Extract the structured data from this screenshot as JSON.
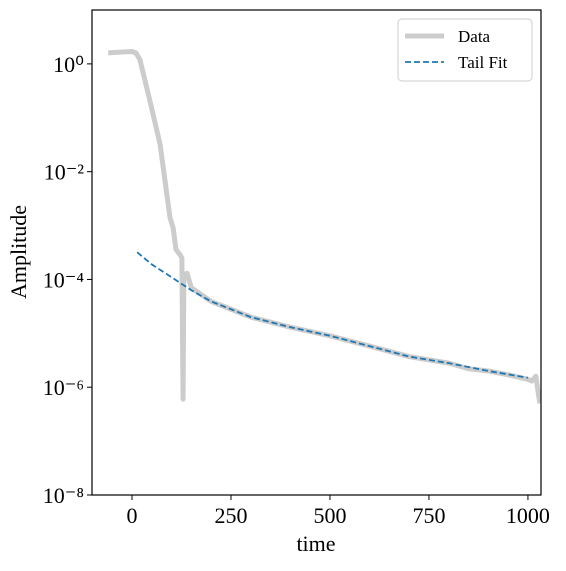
{
  "chart_data": {
    "type": "line",
    "x_label": "time",
    "y_label": "Amplitude",
    "xlim": [
      -101,
      1033
    ],
    "ylim": [
      1e-08,
      10
    ],
    "log_y": true,
    "xticks": [
      0,
      250,
      500,
      750,
      1000
    ],
    "yticks": [
      {
        "value": 1,
        "label": "10⁰"
      },
      {
        "value": 0.01,
        "label": "10⁻²"
      },
      {
        "value": 0.0001,
        "label": "10⁻⁴"
      },
      {
        "value": 1e-06,
        "label": "10⁻⁶"
      },
      {
        "value": 1e-08,
        "label": "10⁻⁸"
      }
    ],
    "legend_position": "upper right",
    "series": [
      {
        "name": "Data",
        "color": "#cccccc",
        "style": "solid",
        "x": [
          -60,
          -30,
          0,
          10,
          20,
          45,
          71,
          96,
          104,
          111,
          121,
          126,
          129,
          131,
          139,
          150,
          200,
          250,
          300,
          400,
          500,
          600,
          700,
          800,
          850,
          900,
          950,
          1000,
          1010,
          1020,
          1030
        ],
        "values": [
          1.6,
          1.65,
          1.7,
          1.6,
          1.2,
          0.21,
          0.032,
          0.0014,
          0.0009,
          0.00036,
          0.00029,
          0.00025,
          6e-07,
          0.00012,
          0.00013,
          7e-05,
          3.9e-05,
          2.8e-05,
          2e-05,
          1.3e-05,
          9e-06,
          5.8e-06,
          3.7e-06,
          2.8e-06,
          2.2e-06,
          2e-06,
          1.7e-06,
          1.4e-06,
          1.3e-06,
          1.6e-06,
          5e-07
        ]
      },
      {
        "name": "Tail Fit",
        "color": "#1f77b4",
        "style": "dashed",
        "x": [
          13,
          50,
          100,
          150,
          200,
          250,
          300,
          400,
          500,
          600,
          700,
          800,
          900,
          1000
        ],
        "values": [
          0.00032,
          0.00019,
          0.00011,
          6.3e-05,
          3.9e-05,
          2.8e-05,
          2e-05,
          1.3e-05,
          9e-06,
          5.8e-06,
          3.7e-06,
          2.8e-06,
          2e-06,
          1.5e-06
        ]
      }
    ]
  }
}
